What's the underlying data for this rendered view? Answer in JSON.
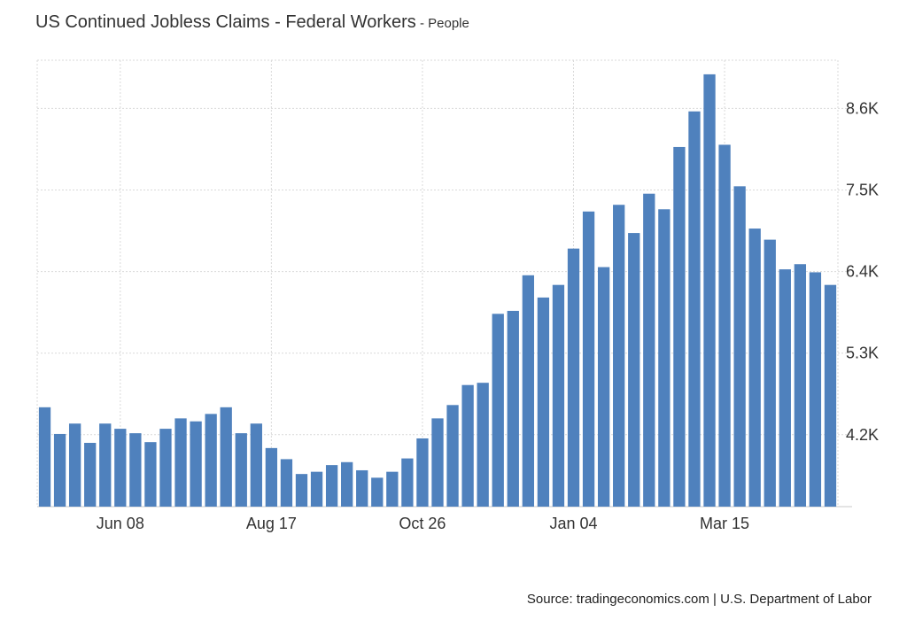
{
  "header": {
    "title": "US Continued Jobless Claims - Federal Workers",
    "subtitle_sep": " - ",
    "subtitle": "People"
  },
  "footer": {
    "source": "Source: tradingeconomics.com | U.S. Department of Labor"
  },
  "colors": {
    "bar": "#4f81bd",
    "grid": "#d9d9d9",
    "axis_text": "#333333"
  },
  "chart_data": {
    "type": "bar",
    "title": "US Continued Jobless Claims - Federal Workers",
    "subtitle": "People",
    "ylabel": "",
    "xlabel": "",
    "y_axis_side": "right",
    "ylim": [
      3230,
      9250
    ],
    "y_ticks": [
      4200,
      5300,
      6400,
      7500,
      8600
    ],
    "y_tick_labels": [
      "4.2K",
      "5.3K",
      "6.4K",
      "7.5K",
      "8.6K"
    ],
    "x_tick_labels": [
      "Jun 08",
      "Aug 17",
      "Oct 26",
      "Jan 04",
      "Mar 15"
    ],
    "x_tick_bar_index": [
      5,
      15,
      25,
      35,
      45
    ],
    "grid": true,
    "values": [
      4570,
      4210,
      4350,
      4090,
      4350,
      4280,
      4220,
      4100,
      4280,
      4420,
      4380,
      4480,
      4570,
      4220,
      4350,
      4020,
      3870,
      3670,
      3700,
      3790,
      3830,
      3720,
      3620,
      3700,
      3880,
      4150,
      4420,
      4600,
      4870,
      4900,
      5830,
      5870,
      6350,
      6050,
      6220,
      6710,
      7210,
      6460,
      7300,
      6920,
      7450,
      7240,
      8080,
      8560,
      9060,
      8110,
      7550,
      6980,
      6830,
      6430,
      6500,
      6390,
      6220
    ]
  }
}
